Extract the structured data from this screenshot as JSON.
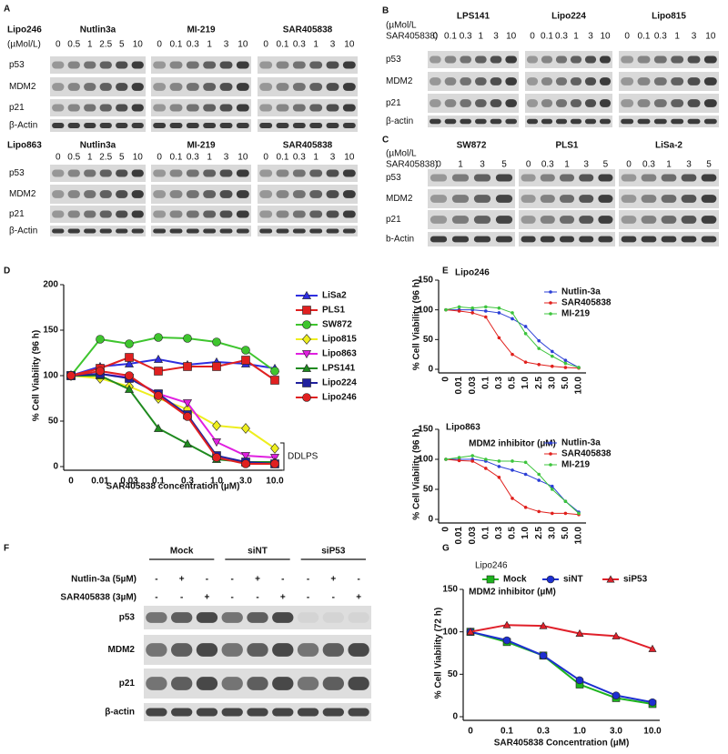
{
  "panels": {
    "A": {
      "label": "A",
      "blocks": [
        {
          "cell": "Lipo246",
          "unit": "(µMol/L)",
          "groups": [
            {
              "name": "Nutlin3a",
              "doses": [
                "0",
                "0.5",
                "1",
                "2.5",
                "5",
                "10"
              ]
            },
            {
              "name": "MI-219",
              "doses": [
                "0",
                "0.1",
                "0.3",
                "1",
                "3",
                "10"
              ]
            },
            {
              "name": "SAR405838",
              "doses": [
                "0",
                "0.1",
                "0.3",
                "1",
                "3",
                "10"
              ]
            }
          ],
          "rows": [
            "p53",
            "MDM2",
            "p21",
            "β-Actin"
          ]
        },
        {
          "cell": "Lipo863",
          "groups": [
            {
              "name": "Nutlin3a",
              "doses": [
                "0",
                "0.5",
                "1",
                "2.5",
                "5",
                "10"
              ]
            },
            {
              "name": "MI-219",
              "doses": [
                "0",
                "0.1",
                "0.3",
                "1",
                "3",
                "10"
              ]
            },
            {
              "name": "SAR405838",
              "doses": [
                "0",
                "0.1",
                "0.3",
                "1",
                "3",
                "10"
              ]
            }
          ],
          "rows": [
            "p53",
            "MDM2",
            "p21",
            "β-Actin"
          ]
        }
      ]
    },
    "B": {
      "label": "B",
      "unit": [
        "(µMol/L",
        "SAR405838)"
      ],
      "groups": [
        {
          "name": "LPS141",
          "doses": [
            "0",
            "0.1",
            "0.3",
            "1",
            "3",
            "10"
          ]
        },
        {
          "name": "Lipo224",
          "doses": [
            "0",
            "0.1",
            "0.3",
            "1",
            "3",
            "10"
          ]
        },
        {
          "name": "Lipo815",
          "doses": [
            "0",
            "0.1",
            "0.3",
            "1",
            "3",
            "10"
          ]
        }
      ],
      "rows": [
        "p53",
        "MDM2",
        "p21",
        "β-actin"
      ]
    },
    "C": {
      "label": "C",
      "unit": [
        "(µMol/L",
        "SAR405838)"
      ],
      "groups": [
        {
          "name": "SW872",
          "doses": [
            "0",
            "1",
            "3",
            "5"
          ]
        },
        {
          "name": "PLS1",
          "doses": [
            "0",
            "0.3",
            "1",
            "3",
            "5"
          ]
        },
        {
          "name": "LiSa-2",
          "doses": [
            "0",
            "0.3",
            "1",
            "3",
            "5"
          ]
        }
      ],
      "rows": [
        "p53",
        "MDM2",
        "p21",
        "b-Actin"
      ]
    },
    "F": {
      "label": "F",
      "groups": [
        "Mock",
        "siNT",
        "siP53"
      ],
      "treatments": [
        {
          "name": "Nutlin-3a (5µM)",
          "signs": [
            "-",
            "+",
            "-",
            "-",
            "+",
            "-",
            "-",
            "+",
            "-"
          ]
        },
        {
          "name": "SAR405838 (3µM)",
          "signs": [
            "-",
            "-",
            "+",
            "-",
            "-",
            "+",
            "-",
            "-",
            "+"
          ]
        }
      ],
      "rows": [
        "p53",
        "MDM2",
        "p21",
        "β-actin"
      ]
    }
  },
  "chart_data": [
    {
      "type": "line",
      "panel_label": "D",
      "x_label": "SAR405838 concentration (µM)",
      "y_label": "% Cell Viability (96 h)",
      "categories": [
        "0",
        "0.01",
        "0.03",
        "0.1",
        "0.3",
        "1.0",
        "3.0",
        "10.0"
      ],
      "ylim": [
        0,
        200
      ],
      "yticks": [
        0,
        50,
        100,
        150,
        200
      ],
      "annotation": "DDLPS",
      "series": [
        {
          "name": "LiSa2",
          "color": "#2e2ee0",
          "marker": "triangle",
          "values": [
            100,
            110,
            113,
            118,
            112,
            115,
            113,
            108
          ]
        },
        {
          "name": "PLS1",
          "color": "#e02020",
          "marker": "square",
          "values": [
            100,
            108,
            120,
            105,
            110,
            110,
            117,
            95
          ]
        },
        {
          "name": "SW872",
          "color": "#3ec52e",
          "marker": "circle",
          "values": [
            100,
            140,
            135,
            142,
            141,
            137,
            128,
            105
          ]
        },
        {
          "name": "Lipo815",
          "color": "#eeee1e",
          "marker": "diamond",
          "values": [
            100,
            97,
            88,
            75,
            63,
            45,
            42,
            20
          ]
        },
        {
          "name": "Lipo863",
          "color": "#e020e0",
          "marker": "triangle-down",
          "values": [
            100,
            102,
            98,
            80,
            70,
            27,
            12,
            10
          ]
        },
        {
          "name": "LPS141",
          "color": "#1f8a1f",
          "marker": "triangle",
          "values": [
            100,
            100,
            85,
            42,
            25,
            8,
            5,
            5
          ]
        },
        {
          "name": "Lipo224",
          "color": "#20209e",
          "marker": "square",
          "values": [
            100,
            102,
            97,
            80,
            57,
            12,
            5,
            3
          ]
        },
        {
          "name": "Lipo246",
          "color": "#e02020",
          "marker": "circle",
          "values": [
            100,
            105,
            100,
            78,
            55,
            10,
            3,
            3
          ]
        }
      ]
    },
    {
      "type": "line",
      "panel_label": "E",
      "title": "Lipo246",
      "x_label": "MDM2 inhibitor (µM)",
      "y_label": "% Cell Viability (96 h)",
      "categories": [
        "0",
        "0.01",
        "0.03",
        "0.1",
        "0.3",
        "0.5",
        "1.0",
        "2.5",
        "3.0",
        "5.0",
        "10.0"
      ],
      "ylim": [
        0,
        150
      ],
      "yticks": [
        0,
        50,
        100,
        150
      ],
      "series": [
        {
          "name": "Nutlin-3a",
          "color": "#2b3fd6",
          "marker": "dot",
          "values": [
            100,
            100,
            100,
            98,
            95,
            85,
            72,
            48,
            30,
            15,
            3
          ]
        },
        {
          "name": "SAR405838",
          "color": "#e0201c",
          "marker": "dot",
          "values": [
            100,
            98,
            95,
            88,
            53,
            25,
            12,
            8,
            5,
            3,
            2
          ]
        },
        {
          "name": "MI-219",
          "color": "#3cc43c",
          "marker": "dot",
          "values": [
            100,
            105,
            103,
            105,
            103,
            95,
            60,
            35,
            22,
            10,
            3
          ]
        }
      ]
    },
    {
      "type": "line",
      "title": "Lipo863",
      "x_label": "MDM2 inhibitor (µM)",
      "y_label": "% Cell Viability (96 h)",
      "categories": [
        "0",
        "0.01",
        "0.03",
        "0.1",
        "0.3",
        "0.5",
        "1.0",
        "2.5",
        "3.0",
        "5.0",
        "10.0"
      ],
      "ylim": [
        0,
        150
      ],
      "yticks": [
        0,
        50,
        100,
        150
      ],
      "series": [
        {
          "name": "Nutlin-3a",
          "color": "#2b3fd6",
          "marker": "dot",
          "values": [
            100,
            100,
            100,
            97,
            88,
            82,
            75,
            65,
            55,
            30,
            12
          ]
        },
        {
          "name": "SAR405838",
          "color": "#e0201c",
          "marker": "dot",
          "values": [
            100,
            98,
            97,
            85,
            70,
            35,
            20,
            13,
            10,
            10,
            8
          ]
        },
        {
          "name": "MI-219",
          "color": "#3cc43c",
          "marker": "dot",
          "values": [
            100,
            103,
            106,
            100,
            97,
            97,
            95,
            75,
            50,
            30,
            10
          ]
        }
      ]
    },
    {
      "type": "line",
      "panel_label": "G",
      "title": "Lipo246",
      "x_label": "SAR405838 Concentration (µM)",
      "y_label": "% Cell Viability (72 h)",
      "categories": [
        "0",
        "0.1",
        "0.3",
        "1.0",
        "3.0",
        "10.0"
      ],
      "ylim": [
        0,
        150
      ],
      "yticks": [
        0,
        50,
        100,
        150
      ],
      "series": [
        {
          "name": "Mock",
          "color": "#1db31d",
          "marker": "square",
          "values": [
            100,
            88,
            72,
            38,
            22,
            15
          ]
        },
        {
          "name": "siNT",
          "color": "#1d2fd0",
          "marker": "circle",
          "values": [
            100,
            90,
            72,
            43,
            25,
            17
          ]
        },
        {
          "name": "siP53",
          "color": "#e0202a",
          "marker": "triangle",
          "values": [
            100,
            108,
            107,
            98,
            95,
            80
          ]
        }
      ]
    }
  ]
}
